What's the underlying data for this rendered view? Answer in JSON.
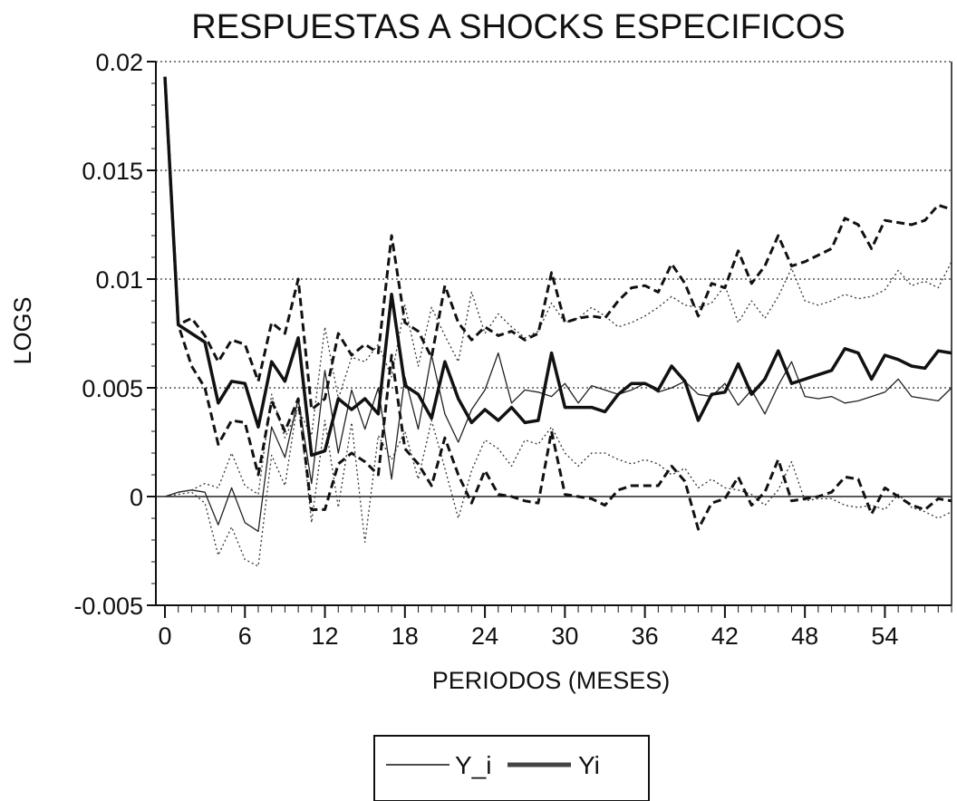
{
  "chart_data": {
    "type": "line",
    "title": "RESPUESTAS A SHOCKS ESPECIFICOS",
    "xlabel": "PERIODOS (MESES)",
    "ylabel": "LOGS",
    "xlim": [
      0,
      59
    ],
    "ylim": [
      -0.005,
      0.02
    ],
    "x_ticks": [
      0,
      6,
      12,
      18,
      24,
      30,
      36,
      42,
      48,
      54
    ],
    "y_ticks": [
      -0.005,
      0,
      0.005,
      0.01,
      0.015,
      0.02
    ],
    "y_tick_labels": [
      "-0.005",
      "0",
      "0.005",
      "0.01",
      "0.015",
      "0.02"
    ],
    "grid": "horizontal dotted",
    "legend_position": "bottom-center",
    "series": [
      {
        "name": "Y_i",
        "style": "thin-solid",
        "values": [
          0.0,
          0.0002,
          0.0003,
          0.0002,
          -0.0013,
          0.0004,
          -0.0012,
          -0.0016,
          0.0032,
          0.0018,
          0.0045,
          0.0006,
          0.0058,
          0.002,
          0.0049,
          0.0031,
          0.005,
          0.0008,
          0.0055,
          0.0031,
          0.0065,
          0.0038,
          0.0025,
          0.004,
          0.0049,
          0.0066,
          0.0043,
          0.0049,
          0.0048,
          0.0046,
          0.0052,
          0.0043,
          0.0051,
          0.0049,
          0.0047,
          0.0049,
          0.0052,
          0.0048,
          0.005,
          0.0053,
          0.0047,
          0.0046,
          0.0052,
          0.0042,
          0.0049,
          0.0038,
          0.0051,
          0.0062,
          0.0046,
          0.0045,
          0.0046,
          0.0043,
          0.0044,
          0.0046,
          0.0048,
          0.0054,
          0.0046,
          0.0045,
          0.0044,
          0.005
        ]
      },
      {
        "name": "Y_i upper band",
        "style": "thin-dotted",
        "values": [
          0.0,
          0.0002,
          0.0003,
          0.0006,
          0.0004,
          0.002,
          0.0005,
          0.0001,
          0.0047,
          0.0027,
          0.004,
          0.0028,
          0.0078,
          0.0045,
          0.0064,
          0.0062,
          0.007,
          0.0055,
          0.0088,
          0.006,
          0.0087,
          0.0074,
          0.0062,
          0.0094,
          0.0075,
          0.0084,
          0.0078,
          0.0073,
          0.0076,
          0.0089,
          0.008,
          0.0082,
          0.0087,
          0.0083,
          0.0078,
          0.008,
          0.0083,
          0.0087,
          0.0092,
          0.0088,
          0.0087,
          0.0089,
          0.0097,
          0.008,
          0.009,
          0.0082,
          0.0092,
          0.0105,
          0.009,
          0.0088,
          0.009,
          0.0093,
          0.0091,
          0.0092,
          0.0095,
          0.0104,
          0.0097,
          0.0099,
          0.0096,
          0.0108
        ]
      },
      {
        "name": "Y_i lower band",
        "style": "thin-dotted",
        "values": [
          0.0,
          0.0001,
          0.0002,
          -0.0003,
          -0.0027,
          -0.0014,
          -0.0029,
          -0.0032,
          0.0019,
          0.0005,
          0.0045,
          -0.0012,
          0.0035,
          -0.0005,
          0.0034,
          -0.0021,
          0.0028,
          0.0017,
          0.003,
          0.0008,
          0.0035,
          0.0013,
          -0.001,
          0.0012,
          0.0026,
          0.0022,
          0.0014,
          0.0026,
          0.0024,
          0.0032,
          0.002,
          0.0014,
          0.002,
          0.002,
          0.0017,
          0.0015,
          0.0017,
          0.0015,
          0.001,
          0.0013,
          0.0004,
          0.0008,
          0.0004,
          0.0003,
          0.0001,
          -0.0004,
          0.0003,
          0.0016,
          -0.0002,
          -0.0001,
          -0.0001,
          -0.0004,
          -0.0005,
          -0.0004,
          -0.0006,
          0.0001,
          -0.0005,
          -0.0007,
          -0.001,
          -0.0007
        ]
      },
      {
        "name": "Yi",
        "style": "thick-solid",
        "values": [
          0.0193,
          0.0079,
          0.0075,
          0.0071,
          0.0043,
          0.0053,
          0.0052,
          0.0032,
          0.0062,
          0.0053,
          0.0073,
          0.0019,
          0.0021,
          0.0045,
          0.004,
          0.0045,
          0.0038,
          0.0093,
          0.0051,
          0.0047,
          0.0036,
          0.0062,
          0.0045,
          0.0034,
          0.004,
          0.0035,
          0.0041,
          0.0034,
          0.0035,
          0.0066,
          0.0041,
          0.0041,
          0.0041,
          0.0039,
          0.0047,
          0.0052,
          0.0052,
          0.0049,
          0.006,
          0.0053,
          0.0035,
          0.0047,
          0.0048,
          0.0061,
          0.0047,
          0.0054,
          0.0067,
          0.0052,
          0.0054,
          0.0056,
          0.0058,
          0.0068,
          0.0066,
          0.0054,
          0.0065,
          0.0063,
          0.006,
          0.0059,
          0.0067,
          0.0066
        ]
      },
      {
        "name": "Yi upper band",
        "style": "thick-dashed",
        "values": [
          0.0193,
          0.0079,
          0.0082,
          0.0074,
          0.0062,
          0.0072,
          0.007,
          0.0053,
          0.008,
          0.0075,
          0.01,
          0.004,
          0.0045,
          0.0075,
          0.0065,
          0.007,
          0.0066,
          0.012,
          0.008,
          0.0076,
          0.0064,
          0.0097,
          0.008,
          0.0072,
          0.0078,
          0.0074,
          0.0076,
          0.0072,
          0.0075,
          0.0103,
          0.008,
          0.0082,
          0.0083,
          0.0082,
          0.009,
          0.0096,
          0.0097,
          0.0094,
          0.0107,
          0.0098,
          0.0083,
          0.0098,
          0.0096,
          0.0113,
          0.0098,
          0.0106,
          0.012,
          0.0106,
          0.0108,
          0.0111,
          0.0114,
          0.0128,
          0.0125,
          0.0114,
          0.0127,
          0.0126,
          0.0125,
          0.0127,
          0.0134,
          0.0132
        ]
      },
      {
        "name": "Yi lower band",
        "style": "thick-dashed",
        "values": [
          0.0193,
          0.0079,
          0.006,
          0.005,
          0.0024,
          0.0035,
          0.0034,
          0.001,
          0.0044,
          0.003,
          0.0045,
          -0.0006,
          -0.0006,
          0.0015,
          0.002,
          0.0016,
          0.001,
          0.0065,
          0.0022,
          0.0015,
          0.0005,
          0.0027,
          0.001,
          -0.0003,
          0.0012,
          0.0001,
          0.0,
          -0.0002,
          -0.0003,
          0.003,
          0.0001,
          0.0,
          -0.0001,
          -0.0004,
          0.0003,
          0.0005,
          0.0005,
          0.0005,
          0.0014,
          0.0007,
          -0.0015,
          -0.0003,
          -0.0001,
          0.0009,
          -0.0004,
          0.0002,
          0.0017,
          -0.0002,
          -0.0001,
          0.0,
          0.0002,
          0.0009,
          0.0008,
          -0.0008,
          0.0004,
          0.0,
          -0.0004,
          -0.0006,
          -0.0001,
          -0.0002
        ]
      }
    ],
    "legend": [
      {
        "label": "Y_i",
        "style": "thin-solid"
      },
      {
        "label": "Yi",
        "style": "thick-solid"
      }
    ]
  }
}
